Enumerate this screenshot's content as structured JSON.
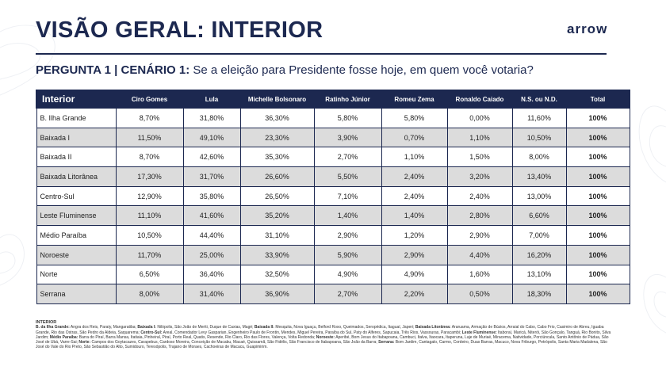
{
  "header": {
    "title": "VISÃO GERAL: INTERIOR",
    "logo": "arrow"
  },
  "question": {
    "label": "PERGUNTA 1 | CENÁRIO 1:",
    "text": "Se a eleição para Presidente fosse hoje, em quem você votaria?"
  },
  "table": {
    "columns": [
      "Interior",
      "Ciro Gomes",
      "Lula",
      "Michelle Bolsonaro",
      "Ratinho Júnior",
      "Romeu Zema",
      "Ronaldo Caiado",
      "N.S. ou N.D.",
      "Total"
    ],
    "rows": [
      [
        "B. Ilha Grande",
        "8,70%",
        "31,80%",
        "36,30%",
        "5,80%",
        "5,80%",
        "0,00%",
        "11,60%",
        "100%"
      ],
      [
        "Baixada I",
        "11,50%",
        "49,10%",
        "23,30%",
        "3,90%",
        "0,70%",
        "1,10%",
        "10,50%",
        "100%"
      ],
      [
        "Baixada II",
        "8,70%",
        "42,60%",
        "35,30%",
        "2,70%",
        "1,10%",
        "1,50%",
        "8,00%",
        "100%"
      ],
      [
        "Baixada Litorânea",
        "17,30%",
        "31,70%",
        "26,60%",
        "5,50%",
        "2,40%",
        "3,20%",
        "13,40%",
        "100%"
      ],
      [
        "Centro-Sul",
        "12,90%",
        "35,80%",
        "26,50%",
        "7,10%",
        "2,40%",
        "2,40%",
        "13,00%",
        "100%"
      ],
      [
        "Leste Fluminense",
        "11,10%",
        "41,60%",
        "35,20%",
        "1,40%",
        "1,40%",
        "2,80%",
        "6,60%",
        "100%"
      ],
      [
        "Médio Paraíba",
        "10,50%",
        "44,40%",
        "31,10%",
        "2,90%",
        "1,20%",
        "2,90%",
        "7,00%",
        "100%"
      ],
      [
        "Noroeste",
        "11,70%",
        "25,00%",
        "33,90%",
        "5,90%",
        "2,90%",
        "4,40%",
        "16,20%",
        "100%"
      ],
      [
        "Norte",
        "6,50%",
        "36,40%",
        "32,50%",
        "4,90%",
        "4,90%",
        "1,60%",
        "13,10%",
        "100%"
      ],
      [
        "Serrana",
        "8,00%",
        "31,40%",
        "36,90%",
        "2,70%",
        "2,20%",
        "0,50%",
        "18,30%",
        "100%"
      ]
    ]
  },
  "notes": {
    "title": "INTERIOR",
    "entries": [
      {
        "region": "B. da Ilha Grande:",
        "cities": "Angra dos Reis, Paraty, Mangaratiba;"
      },
      {
        "region": "Baixada I:",
        "cities": "Nilópolis, São João de Meriti, Duque de Caxias, Magé;"
      },
      {
        "region": "Baixada II:",
        "cities": "Mesquita, Nova Iguaçu, Belford Roxo, Queimados, Seropédica, Itaguaí, Japeri;"
      },
      {
        "region": "Baixada Litorânea:",
        "cities": "Araruama, Armação de Búzios, Arraial do Cabo, Cabo Frio, Casimiro de Abreu, Iguaba Grande, Rio das Ostras, São Pedro da Aldeia, Saquarema;"
      },
      {
        "region": "Centro-Sul:",
        "cities": "Areal, Comendador Levy Gasparian, Engenheiro Paulo de Frontin, Mendes, Miguel Pereira, Paraíba do Sul, Paty do Alferes, Sapucaia, Três Rios, Vassouras, Paracambi;"
      },
      {
        "region": "Leste Fluminense:",
        "cities": "Itaboraí, Maricá, Niterói, São Gonçalo, Tanguá, Rio Bonito, Silva Jardim;"
      },
      {
        "region": "Médio Paraíba:",
        "cities": "Barra do Piraí, Barra Mansa, Itatiaia, Pinheiral, Piraí, Porto Real, Quatis, Resende, Rio Claro, Rio das Flores, Valença, Volta Redonda;"
      },
      {
        "region": "Noroeste:",
        "cities": "Aperibé, Bom Jesus do Itabapoana, Cambuci, Italva, Itaocara, Itaperuna, Laje de Muriaé, Miracema, Natividade, Porciúncula, Santo Antônio de Pádua, São José de Ubá, Varre-Sai;"
      },
      {
        "region": "Norte:",
        "cities": "Campos dos Goytacazes, Carapebus, Cardoso Moreira, Conceição de Macabu, Macaé, Quissamã, São Fidélis, São Francisco de Itabapoana, São João da Barra;"
      },
      {
        "region": "Serrana:",
        "cities": "Bom Jardim, Cantagalo, Carmo, Cordeiro, Duas Barras, Macuco, Nova Friburgo, Petrópolis, Santa Maria Madalena, São José do Vale do Rio Preto, São Sebastião do Alto, Sumidouro, Teresópolis, Trajano de Moraes, Cachoeiras de Macacu, Guapimirim."
      }
    ]
  }
}
